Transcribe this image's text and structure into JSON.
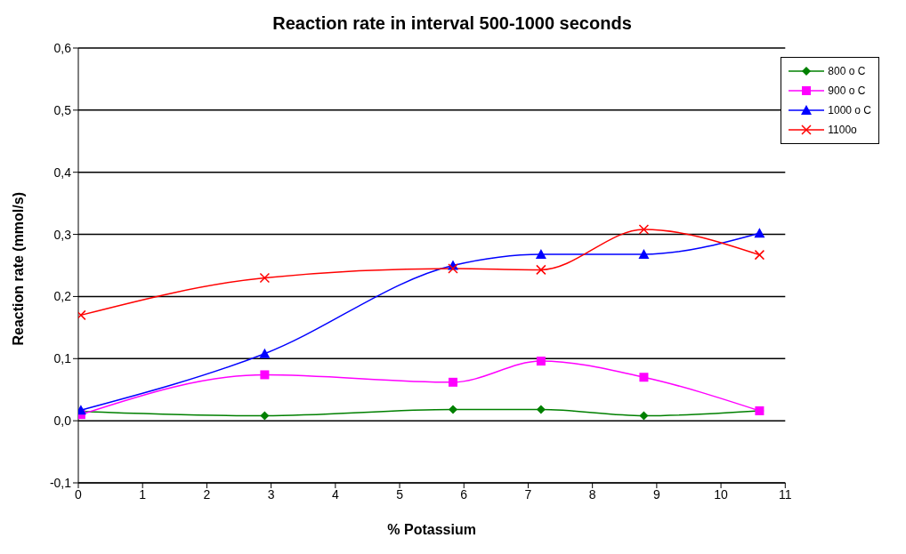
{
  "chart_data": {
    "type": "line",
    "title": "Reaction rate in interval 500-1000 seconds",
    "xlabel": "% Potassium",
    "ylabel": "Reaction rate (mmol/s)",
    "x": [
      0.04,
      2.9,
      5.83,
      7.2,
      8.8,
      10.6
    ],
    "series": [
      {
        "name": "800 o C",
        "color": "#008000",
        "marker": "diamond",
        "values": [
          0.015,
          0.008,
          0.018,
          0.018,
          0.008,
          0.016
        ]
      },
      {
        "name": "900 o C",
        "color": "#ff00ff",
        "marker": "square",
        "values": [
          0.01,
          0.074,
          0.062,
          0.096,
          0.07,
          0.016
        ]
      },
      {
        "name": "1000 o C",
        "color": "#0000ff",
        "marker": "triangle",
        "values": [
          0.017,
          0.108,
          0.25,
          0.268,
          0.268,
          0.302
        ]
      },
      {
        "name": "1100o",
        "color": "#ff0000",
        "marker": "cross",
        "values": [
          0.17,
          0.23,
          0.245,
          0.243,
          0.308,
          0.267
        ]
      }
    ],
    "xlim": [
      0,
      11
    ],
    "xticks": [
      0,
      1,
      2,
      3,
      4,
      5,
      6,
      7,
      8,
      9,
      10,
      11
    ],
    "ylim": [
      -0.1,
      0.6
    ],
    "yticks": [
      {
        "value": -0.1,
        "label": "-0,1"
      },
      {
        "value": 0,
        "label": "0,0"
      },
      {
        "value": 0.1,
        "label": "0,1"
      },
      {
        "value": 0.2,
        "label": "0,2"
      },
      {
        "value": 0.3,
        "label": "0,3"
      },
      {
        "value": 0.4,
        "label": "0,4"
      },
      {
        "value": 0.5,
        "label": "0,5"
      },
      {
        "value": 0.6,
        "label": "0,6"
      }
    ],
    "grid": "y",
    "legend": "top right",
    "line_style": "solid"
  }
}
